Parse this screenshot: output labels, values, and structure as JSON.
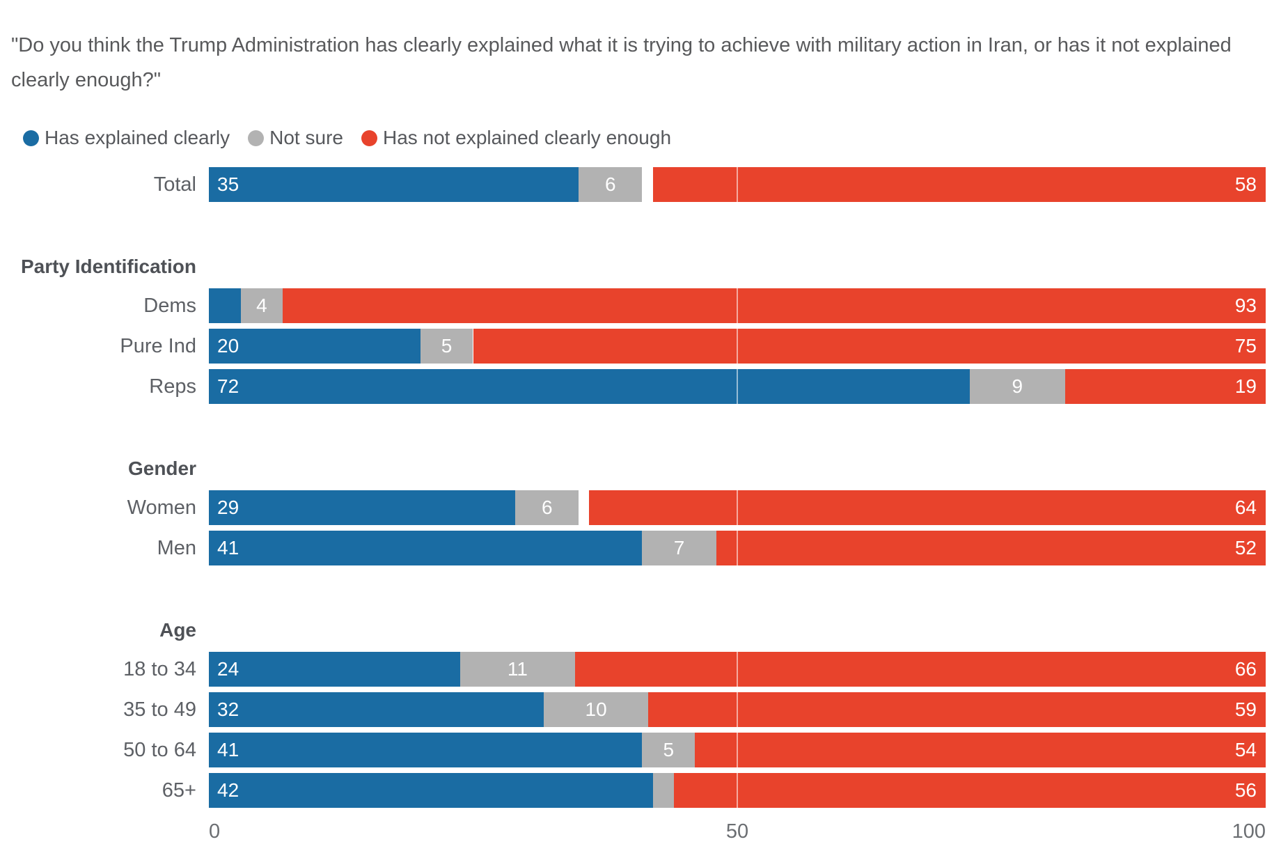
{
  "chart_data": {
    "type": "bar",
    "stacked": true,
    "orientation": "horizontal",
    "title": "\"Do you think the Trump Administration has clearly explained what it is trying to achieve with military action in Iran, or has it not explained clearly enough?\"",
    "xlim": [
      0,
      100
    ],
    "x_tick_labels": [
      "0",
      "50",
      "100"
    ],
    "gridline_x": 50,
    "grid": "single white line at 50 over bars",
    "legend_position": "top-left",
    "legend": [
      {
        "label": "Has explained clearly",
        "color": "#1a6ca3",
        "slug": "explained"
      },
      {
        "label": "Not sure",
        "color": "#b2b2b2",
        "slug": "not-sure"
      },
      {
        "label": "Has not explained clearly enough",
        "color": "#e8432c",
        "slug": "not-explained"
      }
    ],
    "groups": [
      {
        "header": "",
        "rows": [
          {
            "label": "Total",
            "values": [
              35,
              6,
              58
            ],
            "display_labels": [
              "35",
              "6",
              "58"
            ]
          }
        ]
      },
      {
        "header": "Party Identification",
        "rows": [
          {
            "label": "Dems",
            "values": [
              3,
              4,
              93
            ],
            "display_labels": [
              "",
              "4",
              "93"
            ]
          },
          {
            "label": "Pure Ind",
            "values": [
              20,
              5,
              75
            ],
            "display_labels": [
              "20",
              "5",
              "75"
            ]
          },
          {
            "label": "Reps",
            "values": [
              72,
              9,
              19
            ],
            "display_labels": [
              "72",
              "9",
              "19"
            ]
          }
        ]
      },
      {
        "header": "Gender",
        "rows": [
          {
            "label": "Women",
            "values": [
              29,
              6,
              64
            ],
            "display_labels": [
              "29",
              "6",
              "64"
            ]
          },
          {
            "label": "Men",
            "values": [
              41,
              7,
              52
            ],
            "display_labels": [
              "41",
              "7",
              "52"
            ]
          }
        ]
      },
      {
        "header": "Age",
        "rows": [
          {
            "label": "18 to 34",
            "values": [
              24,
              11,
              66
            ],
            "display_labels": [
              "24",
              "11",
              "66"
            ]
          },
          {
            "label": "35 to 49",
            "values": [
              32,
              10,
              59
            ],
            "display_labels": [
              "32",
              "10",
              "59"
            ]
          },
          {
            "label": "50 to 64",
            "values": [
              41,
              5,
              54
            ],
            "display_labels": [
              "41",
              "5",
              "54"
            ]
          },
          {
            "label": "65+",
            "values": [
              42,
              2,
              56
            ],
            "display_labels": [
              "42",
              "",
              "56"
            ]
          }
        ]
      }
    ]
  }
}
